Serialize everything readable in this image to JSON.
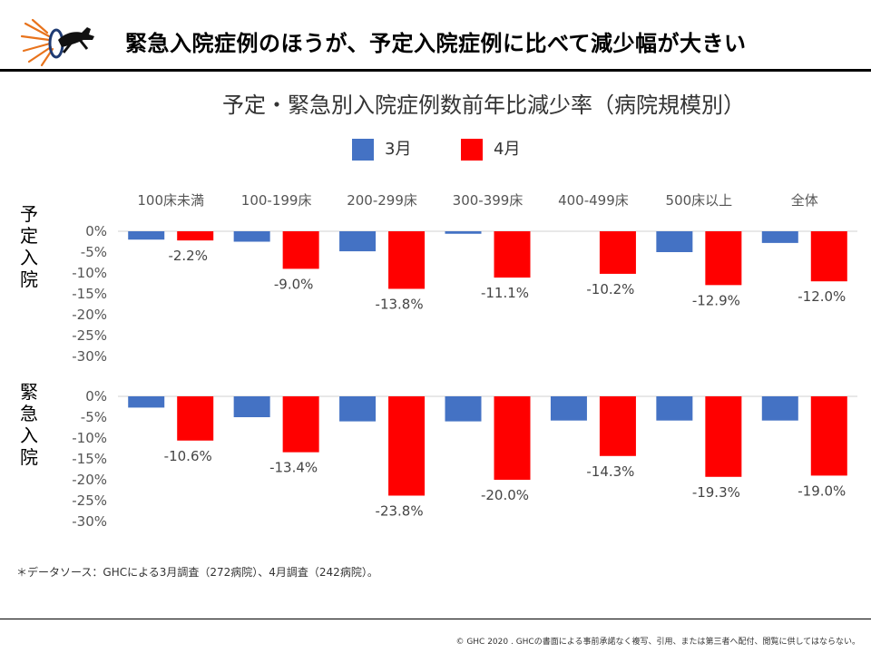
{
  "header": {
    "title": "緊急入院症例のほうが、予定入院症例に比べて減少幅が大きい"
  },
  "chart_data": {
    "type": "bar",
    "title": "予定・緊急別入院症例数前年比減少率（病院規模別）",
    "categories": [
      "100床未満",
      "100-199床",
      "200-299床",
      "300-399床",
      "400-499床",
      "500床以上",
      "全体"
    ],
    "legend": [
      {
        "name": "3月",
        "color": "#4472C4"
      },
      {
        "name": "4月",
        "color": "#FF0000"
      }
    ],
    "legend_position": "top",
    "ylim": [
      -30,
      0
    ],
    "yticks": [
      "0%",
      "-5%",
      "-10%",
      "-15%",
      "-20%",
      "-25%",
      "-30%"
    ],
    "grid": false,
    "panels": [
      {
        "label": "予定入院",
        "series": [
          {
            "name": "3月",
            "values": [
              -2.0,
              -2.5,
              -4.8,
              -0.6,
              0,
              -5.0,
              -2.8
            ]
          },
          {
            "name": "4月",
            "values": [
              -2.2,
              -9.0,
              -13.8,
              -11.1,
              -10.2,
              -12.9,
              -12.0
            ]
          }
        ],
        "data_labels": [
          "-2.2%",
          "-9.0%",
          "-13.8%",
          "-11.1%",
          "-10.2%",
          "-12.9%",
          "-12.0%"
        ]
      },
      {
        "label": "緊急入院",
        "series": [
          {
            "name": "3月",
            "values": [
              -2.7,
              -5.0,
              -6.0,
              -6.0,
              -5.8,
              -5.8,
              -5.8
            ]
          },
          {
            "name": "4月",
            "values": [
              -10.6,
              -13.4,
              -23.8,
              -20.0,
              -14.3,
              -19.3,
              -19.0
            ]
          }
        ],
        "data_labels": [
          "-10.6%",
          "-13.4%",
          "-23.8%",
          "-20.0%",
          "-14.3%",
          "-19.3%",
          "-19.0%"
        ]
      }
    ]
  },
  "footer": {
    "source": "＊データソース：GHCによる3月調査（272病院）、4月調査（242病院）。",
    "copyright": "© GHC 2020 . GHCの書面による事前承諾なく複写、引用、または第三者へ配付、閲覧に供してはならない。"
  },
  "colors": {
    "march": "#4472C4",
    "april": "#FF0000"
  },
  "logo": {
    "icon": "dog-jumping-through-hoop-logo"
  }
}
